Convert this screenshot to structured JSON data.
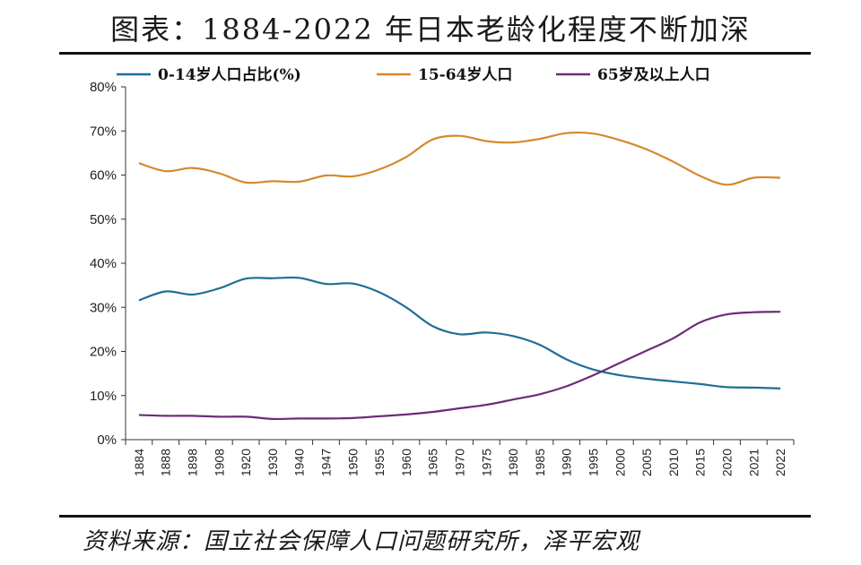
{
  "header": {
    "title": "图表：1884-2022 年日本老龄化程度不断加深"
  },
  "footer": {
    "source": "资料来源：国立社会保障人口问题研究所，泽平宏观"
  },
  "chart_data": {
    "type": "line",
    "title": "图表：1884-2022 年日本老龄化程度不断加深",
    "xlabel": "",
    "ylabel": "",
    "ylim": [
      0,
      80
    ],
    "yticks": [
      "0%",
      "10%",
      "20%",
      "30%",
      "40%",
      "50%",
      "60%",
      "70%",
      "80%"
    ],
    "categories": [
      "1884",
      "1888",
      "1898",
      "1908",
      "1920",
      "1930",
      "1940",
      "1947",
      "1950",
      "1955",
      "1960",
      "1965",
      "1970",
      "1975",
      "1980",
      "1985",
      "1990",
      "1995",
      "2000",
      "2005",
      "2010",
      "2015",
      "2020",
      "2021",
      "2022"
    ],
    "legend_position": "top",
    "series": [
      {
        "name": "0-14岁人口占比(%)",
        "color": "#1f6e96",
        "values": [
          31.6,
          33.6,
          32.9,
          34.3,
          36.5,
          36.6,
          36.7,
          35.3,
          35.4,
          33.4,
          30.0,
          25.7,
          23.9,
          24.3,
          23.5,
          21.5,
          18.2,
          15.9,
          14.6,
          13.8,
          13.2,
          12.6,
          11.9,
          11.8,
          11.6
        ]
      },
      {
        "name": "15-64岁人口",
        "color": "#d6882c",
        "values": [
          62.7,
          60.9,
          61.6,
          60.4,
          58.3,
          58.6,
          58.5,
          59.9,
          59.7,
          61.3,
          64.1,
          68.1,
          68.9,
          67.7,
          67.4,
          68.2,
          69.5,
          69.4,
          67.9,
          65.8,
          63.0,
          59.8,
          57.8,
          59.4,
          59.4
        ]
      },
      {
        "name": "65岁及以上人口",
        "color": "#6b2c77",
        "values": [
          5.6,
          5.4,
          5.4,
          5.2,
          5.2,
          4.7,
          4.8,
          4.8,
          4.9,
          5.3,
          5.7,
          6.3,
          7.1,
          7.9,
          9.1,
          10.3,
          12.1,
          14.6,
          17.4,
          20.2,
          23.0,
          26.6,
          28.4,
          28.9,
          29.0
        ]
      }
    ]
  }
}
